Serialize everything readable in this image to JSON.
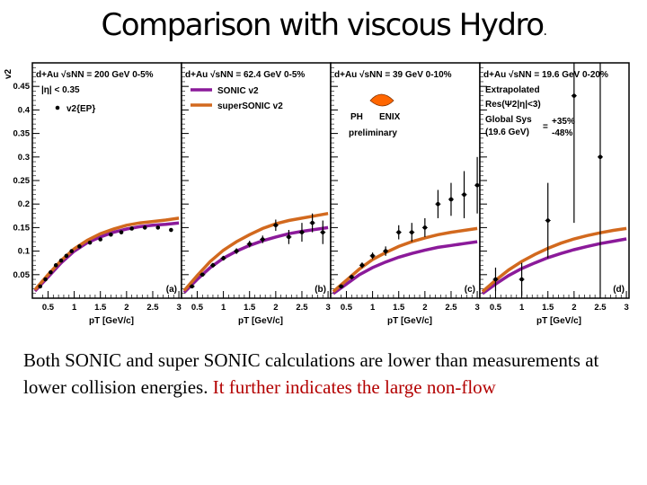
{
  "slide": {
    "title": "Comparison  with viscous Hydro",
    "title_dot": ".",
    "caption_black": "Both SONIC and super SONIC calculations are lower than measurements at lower collision energies. ",
    "caption_red": "It further indicates the large non-flow"
  },
  "chart_data": {
    "type": "line",
    "ylabel": "v2",
    "xlabel": "pT [GeV/c]",
    "xlim": [
      0.2,
      3.05
    ],
    "ylim": [
      0,
      0.5
    ],
    "x_ticks": [
      "0.5",
      "1",
      "1.5",
      "2",
      "2.5",
      "3"
    ],
    "y_ticks": [
      "0.05",
      "0.1",
      "0.15",
      "0.2",
      "0.25",
      "0.3",
      "0.35",
      "0.4",
      "0.45"
    ],
    "grid": false,
    "colors": {
      "sonic": "#8b1a9a",
      "supersonic": "#d2691e",
      "data": "#000000"
    },
    "panels": [
      {
        "tag": "(a)",
        "header": "d+Au √sNN = 200 GeV 0-5%",
        "legend": [
          "|η| < 0.35",
          "v2{EP}"
        ],
        "data": [
          {
            "x": 0.35,
            "y": 0.025
          },
          {
            "x": 0.45,
            "y": 0.04
          },
          {
            "x": 0.55,
            "y": 0.055
          },
          {
            "x": 0.65,
            "y": 0.07
          },
          {
            "x": 0.75,
            "y": 0.08
          },
          {
            "x": 0.85,
            "y": 0.09
          },
          {
            "x": 0.95,
            "y": 0.1
          },
          {
            "x": 1.1,
            "y": 0.11
          },
          {
            "x": 1.3,
            "y": 0.118
          },
          {
            "x": 1.5,
            "y": 0.125
          },
          {
            "x": 1.7,
            "y": 0.135
          },
          {
            "x": 1.9,
            "y": 0.14
          },
          {
            "x": 2.1,
            "y": 0.148
          },
          {
            "x": 2.35,
            "y": 0.15
          },
          {
            "x": 2.6,
            "y": 0.15
          },
          {
            "x": 2.85,
            "y": 0.145
          }
        ],
        "sonic": [
          [
            0.25,
            0.015
          ],
          [
            0.5,
            0.045
          ],
          [
            0.75,
            0.075
          ],
          [
            1.0,
            0.1
          ],
          [
            1.25,
            0.118
          ],
          [
            1.5,
            0.13
          ],
          [
            1.75,
            0.14
          ],
          [
            2.0,
            0.147
          ],
          [
            2.25,
            0.152
          ],
          [
            2.5,
            0.155
          ],
          [
            2.75,
            0.157
          ],
          [
            3.0,
            0.16
          ]
        ],
        "supersonic": [
          [
            0.25,
            0.018
          ],
          [
            0.5,
            0.05
          ],
          [
            0.75,
            0.08
          ],
          [
            1.0,
            0.105
          ],
          [
            1.25,
            0.123
          ],
          [
            1.5,
            0.137
          ],
          [
            1.75,
            0.147
          ],
          [
            2.0,
            0.155
          ],
          [
            2.25,
            0.16
          ],
          [
            2.5,
            0.163
          ],
          [
            2.75,
            0.166
          ],
          [
            3.0,
            0.17
          ]
        ]
      },
      {
        "tag": "(b)",
        "header": "d+Au √sNN = 62.4 GeV 0-5%",
        "legend": [
          "SONIC v2",
          "superSONIC v2"
        ],
        "data": [
          {
            "x": 0.4,
            "y": 0.025,
            "err": 0.004
          },
          {
            "x": 0.6,
            "y": 0.05,
            "err": 0.004
          },
          {
            "x": 0.8,
            "y": 0.07,
            "err": 0.005
          },
          {
            "x": 1.0,
            "y": 0.085,
            "err": 0.005
          },
          {
            "x": 1.25,
            "y": 0.1,
            "err": 0.006
          },
          {
            "x": 1.5,
            "y": 0.115,
            "err": 0.007
          },
          {
            "x": 1.75,
            "y": 0.125,
            "err": 0.008
          },
          {
            "x": 2.0,
            "y": 0.155,
            "err": 0.012
          },
          {
            "x": 2.25,
            "y": 0.13,
            "err": 0.015
          },
          {
            "x": 2.5,
            "y": 0.14,
            "err": 0.02
          },
          {
            "x": 2.7,
            "y": 0.16,
            "err": 0.02
          },
          {
            "x": 2.9,
            "y": 0.14,
            "err": 0.025
          }
        ],
        "sonic": [
          [
            0.25,
            0.012
          ],
          [
            0.5,
            0.04
          ],
          [
            0.75,
            0.065
          ],
          [
            1.0,
            0.085
          ],
          [
            1.25,
            0.1
          ],
          [
            1.5,
            0.112
          ],
          [
            1.75,
            0.122
          ],
          [
            2.0,
            0.13
          ],
          [
            2.25,
            0.137
          ],
          [
            2.5,
            0.142
          ],
          [
            2.75,
            0.146
          ],
          [
            3.0,
            0.15
          ]
        ],
        "supersonic": [
          [
            0.25,
            0.016
          ],
          [
            0.5,
            0.048
          ],
          [
            0.75,
            0.078
          ],
          [
            1.0,
            0.102
          ],
          [
            1.25,
            0.12
          ],
          [
            1.5,
            0.135
          ],
          [
            1.75,
            0.148
          ],
          [
            2.0,
            0.158
          ],
          [
            2.25,
            0.165
          ],
          [
            2.5,
            0.17
          ],
          [
            2.75,
            0.175
          ],
          [
            3.0,
            0.18
          ]
        ]
      },
      {
        "tag": "(c)",
        "header": "d+Au √sNN = 39 GeV 0-10%",
        "logo": [
          "PH",
          "ENIX",
          "preliminary"
        ],
        "data": [
          {
            "x": 0.4,
            "y": 0.025,
            "err": 0.004
          },
          {
            "x": 0.6,
            "y": 0.045,
            "err": 0.005
          },
          {
            "x": 0.8,
            "y": 0.07,
            "err": 0.006
          },
          {
            "x": 1.0,
            "y": 0.09,
            "err": 0.007
          },
          {
            "x": 1.25,
            "y": 0.1,
            "err": 0.01
          },
          {
            "x": 1.5,
            "y": 0.14,
            "err": 0.015
          },
          {
            "x": 1.75,
            "y": 0.14,
            "err": 0.02
          },
          {
            "x": 2.0,
            "y": 0.15,
            "err": 0.02
          },
          {
            "x": 2.25,
            "y": 0.2,
            "err": 0.03
          },
          {
            "x": 2.5,
            "y": 0.21,
            "err": 0.035
          },
          {
            "x": 2.75,
            "y": 0.22,
            "err": 0.05
          },
          {
            "x": 3.0,
            "y": 0.24,
            "err": 0.06
          }
        ],
        "sonic": [
          [
            0.25,
            0.01
          ],
          [
            0.5,
            0.03
          ],
          [
            0.75,
            0.05
          ],
          [
            1.0,
            0.065
          ],
          [
            1.25,
            0.077
          ],
          [
            1.5,
            0.087
          ],
          [
            1.75,
            0.095
          ],
          [
            2.0,
            0.102
          ],
          [
            2.25,
            0.108
          ],
          [
            2.5,
            0.112
          ],
          [
            2.75,
            0.116
          ],
          [
            3.0,
            0.12
          ]
        ],
        "supersonic": [
          [
            0.25,
            0.014
          ],
          [
            0.5,
            0.038
          ],
          [
            0.75,
            0.062
          ],
          [
            1.0,
            0.082
          ],
          [
            1.25,
            0.097
          ],
          [
            1.5,
            0.11
          ],
          [
            1.75,
            0.12
          ],
          [
            2.0,
            0.128
          ],
          [
            2.25,
            0.135
          ],
          [
            2.5,
            0.14
          ],
          [
            2.75,
            0.144
          ],
          [
            3.0,
            0.148
          ]
        ]
      },
      {
        "tag": "(d)",
        "header": "d+Au √sNN = 19.6 GeV 0-20%",
        "legend": [
          "Extrapolated",
          "Res(Ψ2|η|<3)",
          "Global Sys",
          "(19.6 GeV)",
          "=",
          "+35%",
          "-48%"
        ],
        "data": [
          {
            "x": 0.5,
            "y": 0.04,
            "err": 0.025
          },
          {
            "x": 1.0,
            "y": 0.04,
            "err": 0.035
          },
          {
            "x": 1.5,
            "y": 0.165,
            "err": 0.08
          },
          {
            "x": 2.0,
            "y": 0.43,
            "err": 0.27
          },
          {
            "x": 2.5,
            "y": 0.3,
            "err": 0.3
          }
        ],
        "sonic": [
          [
            0.25,
            0.01
          ],
          [
            0.5,
            0.03
          ],
          [
            0.75,
            0.048
          ],
          [
            1.0,
            0.063
          ],
          [
            1.25,
            0.075
          ],
          [
            1.5,
            0.086
          ],
          [
            1.75,
            0.095
          ],
          [
            2.0,
            0.103
          ],
          [
            2.25,
            0.11
          ],
          [
            2.5,
            0.116
          ],
          [
            2.75,
            0.121
          ],
          [
            3.0,
            0.126
          ]
        ],
        "supersonic": [
          [
            0.25,
            0.014
          ],
          [
            0.5,
            0.038
          ],
          [
            0.75,
            0.06
          ],
          [
            1.0,
            0.078
          ],
          [
            1.25,
            0.093
          ],
          [
            1.5,
            0.106
          ],
          [
            1.75,
            0.117
          ],
          [
            2.0,
            0.126
          ],
          [
            2.25,
            0.133
          ],
          [
            2.5,
            0.139
          ],
          [
            2.75,
            0.144
          ],
          [
            3.0,
            0.148
          ]
        ]
      }
    ]
  }
}
